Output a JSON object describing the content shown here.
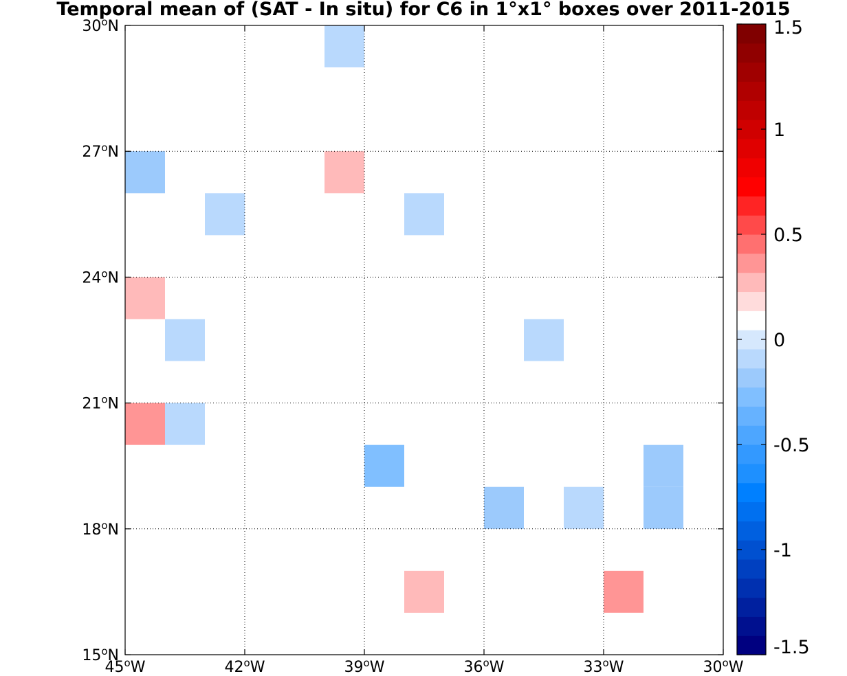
{
  "chart_data": {
    "type": "heatmap",
    "title": "Temporal mean of (SAT - In situ) for C6 in 1°x1° boxes over 2011-2015",
    "x_ticks": [
      {
        "value": -45,
        "label": "45",
        "suffix": "W"
      },
      {
        "value": -42,
        "label": "42",
        "suffix": "W"
      },
      {
        "value": -39,
        "label": "39",
        "suffix": "W"
      },
      {
        "value": -36,
        "label": "36",
        "suffix": "W"
      },
      {
        "value": -33,
        "label": "33",
        "suffix": "W"
      },
      {
        "value": -30,
        "label": "30",
        "suffix": "W"
      }
    ],
    "y_ticks": [
      {
        "value": 15,
        "label": "15",
        "suffix": "N"
      },
      {
        "value": 18,
        "label": "18",
        "suffix": "N"
      },
      {
        "value": 21,
        "label": "21",
        "suffix": "N"
      },
      {
        "value": 24,
        "label": "24",
        "suffix": "N"
      },
      {
        "value": 27,
        "label": "27",
        "suffix": "N"
      },
      {
        "value": 30,
        "label": "30",
        "suffix": "N"
      }
    ],
    "degree_symbol": "o",
    "xlim": [
      -45,
      -30
    ],
    "ylim": [
      15,
      30
    ],
    "grid": true,
    "cell_size_deg": 1,
    "cells": [
      {
        "lon": -40,
        "lat": 29,
        "value": -0.1
      },
      {
        "lon": -37,
        "lat": 29,
        "value": 0.1
      },
      {
        "lon": -39,
        "lat": 28,
        "value": 0.1
      },
      {
        "lon": -45,
        "lat": 26,
        "value": -0.2
      },
      {
        "lon": -40,
        "lat": 26,
        "value": 0.25
      },
      {
        "lon": -43,
        "lat": 25,
        "value": -0.1
      },
      {
        "lon": -38,
        "lat": 25,
        "value": -0.1
      },
      {
        "lon": -39,
        "lat": 24,
        "value": 0.1
      },
      {
        "lon": -31,
        "lat": 24,
        "value": 0.1
      },
      {
        "lon": -45,
        "lat": 23,
        "value": 0.25
      },
      {
        "lon": -44,
        "lat": 22,
        "value": -0.1
      },
      {
        "lon": -43,
        "lat": 22,
        "value": 0.1
      },
      {
        "lon": -35,
        "lat": 22,
        "value": -0.1
      },
      {
        "lon": -45,
        "lat": 21,
        "value": 0.1
      },
      {
        "lon": -44,
        "lat": 21,
        "value": 0.1
      },
      {
        "lon": -40,
        "lat": 21,
        "value": 0.1
      },
      {
        "lon": -45,
        "lat": 20,
        "value": 0.4
      },
      {
        "lon": -44,
        "lat": 20,
        "value": -0.1
      },
      {
        "lon": -39,
        "lat": 20,
        "value": 0.1
      },
      {
        "lon": -39,
        "lat": 19,
        "value": -0.25
      },
      {
        "lon": -32,
        "lat": 19,
        "value": -0.2
      },
      {
        "lon": -36,
        "lat": 18,
        "value": -0.2
      },
      {
        "lon": -34,
        "lat": 18,
        "value": -0.1
      },
      {
        "lon": -32,
        "lat": 18,
        "value": -0.2
      },
      {
        "lon": -31,
        "lat": 17,
        "value": 0.1
      },
      {
        "lon": -38,
        "lat": 16,
        "value": 0.25
      },
      {
        "lon": -33,
        "lat": 16,
        "value": 0.4
      },
      {
        "lon": -31,
        "lat": 16,
        "value": 0.1
      },
      {
        "lon": -33,
        "lat": 15,
        "value": 0.1
      }
    ],
    "colorbar": {
      "vmin": -1.5,
      "vmax": 1.5,
      "white_range": [
        -0.05,
        0.05
      ],
      "tick_values": [
        -1.5,
        -1,
        -0.5,
        0,
        0.5,
        1,
        1.5
      ],
      "tick_labels": [
        "-1.5",
        "-1",
        "-0.5",
        "0",
        "0.5",
        "1",
        "1.5"
      ],
      "colors": [
        "#000080",
        "#00108f",
        "#00209f",
        "#0030b0",
        "#0040c0",
        "#0050d0",
        "#0060e0",
        "#0070f0",
        "#0080ff",
        "#1e90ff",
        "#3399ff",
        "#4da6ff",
        "#66b2ff",
        "#80bfff",
        "#9ccafc",
        "#b9d9fd",
        "#d6e8fd",
        "#ffffff",
        "#ffdcdc",
        "#ffbaba",
        "#ff9595",
        "#ff7070",
        "#ff4a4a",
        "#ff2424",
        "#ff0000",
        "#f00000",
        "#e00000",
        "#d00000",
        "#c00000",
        "#b00000",
        "#a00000",
        "#900000",
        "#800000"
      ]
    }
  }
}
